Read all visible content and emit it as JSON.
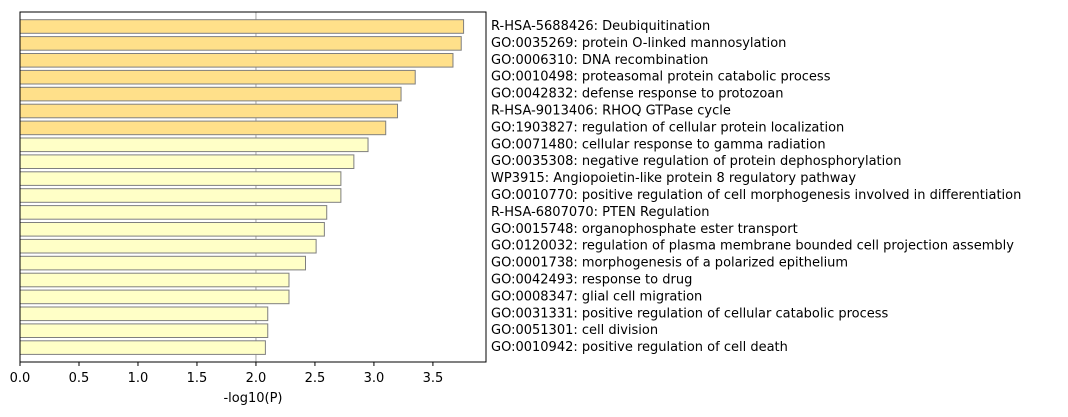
{
  "chart_data": {
    "type": "bar",
    "orientation": "horizontal",
    "xlabel": "-log10(P)",
    "xlim": [
      0,
      3.95
    ],
    "xticks": [
      "0.0",
      "0.5",
      "1.0",
      "1.5",
      "2.0",
      "2.5",
      "3.0",
      "3.5"
    ],
    "reference_line": 2.0,
    "colors": {
      "strong": "#ffe08a",
      "weak": "#ffffc7",
      "edge": "#7f7f7f",
      "refline": "#b3b3b3"
    },
    "bars": [
      {
        "label": "R-HSA-5688426: Deubiquitination",
        "value": 3.76,
        "group": "strong"
      },
      {
        "label": "GO:0035269: protein O-linked mannosylation",
        "value": 3.74,
        "group": "strong"
      },
      {
        "label": "GO:0006310: DNA recombination",
        "value": 3.67,
        "group": "strong"
      },
      {
        "label": "GO:0010498: proteasomal protein catabolic process",
        "value": 3.35,
        "group": "strong"
      },
      {
        "label": "GO:0042832: defense response to protozoan",
        "value": 3.23,
        "group": "strong"
      },
      {
        "label": "R-HSA-9013406: RHOQ GTPase cycle",
        "value": 3.2,
        "group": "strong"
      },
      {
        "label": "GO:1903827: regulation of cellular protein localization",
        "value": 3.1,
        "group": "strong"
      },
      {
        "label": "GO:0071480: cellular response to gamma radiation",
        "value": 2.95,
        "group": "weak"
      },
      {
        "label": "GO:0035308: negative regulation of protein dephosphorylation",
        "value": 2.83,
        "group": "weak"
      },
      {
        "label": "WP3915: Angiopoietin-like protein 8 regulatory pathway",
        "value": 2.72,
        "group": "weak"
      },
      {
        "label": "GO:0010770: positive regulation of cell morphogenesis involved in differentiation",
        "value": 2.72,
        "group": "weak"
      },
      {
        "label": "R-HSA-6807070: PTEN Regulation",
        "value": 2.6,
        "group": "weak"
      },
      {
        "label": "GO:0015748: organophosphate ester transport",
        "value": 2.58,
        "group": "weak"
      },
      {
        "label": "GO:0120032: regulation of plasma membrane bounded cell projection assembly",
        "value": 2.51,
        "group": "weak"
      },
      {
        "label": "GO:0001738: morphogenesis of a polarized epithelium",
        "value": 2.42,
        "group": "weak"
      },
      {
        "label": "GO:0042493: response to drug",
        "value": 2.28,
        "group": "weak"
      },
      {
        "label": "GO:0008347: glial cell migration",
        "value": 2.28,
        "group": "weak"
      },
      {
        "label": "GO:0031331: positive regulation of cellular catabolic process",
        "value": 2.1,
        "group": "weak"
      },
      {
        "label": "GO:0051301: cell division",
        "value": 2.1,
        "group": "weak"
      },
      {
        "label": "GO:0010942: positive regulation of cell death",
        "value": 2.08,
        "group": "weak"
      }
    ]
  }
}
